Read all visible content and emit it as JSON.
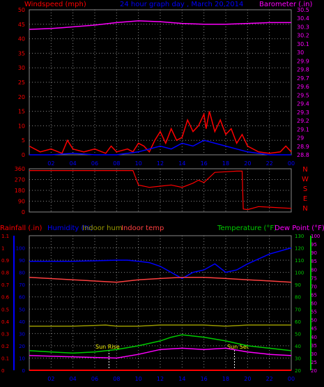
{
  "chart_data": [
    {
      "type": "line",
      "title": "24 hour graph day , March 20,2014",
      "left_axis_label": "Windspeed (mph)",
      "right_axis_label": "Barometer (.in)",
      "x_ticks": [
        "02",
        "04",
        "06",
        "08",
        "10",
        "12",
        "14",
        "16",
        "18",
        "20",
        "22",
        "00"
      ],
      "left_ticks": [
        "0",
        "5",
        "10",
        "15",
        "20",
        "25",
        "30",
        "35",
        "40",
        "45",
        "50"
      ],
      "right_ticks": [
        "28.8",
        "28.9",
        "29",
        "29.1",
        "29.2",
        "29.3",
        "29.4",
        "29.5",
        "29.6",
        "29.7",
        "29.8",
        "29.9",
        "30",
        "30.1",
        "30.2",
        "30.3",
        "30.4",
        "30.5"
      ],
      "ylim_left": [
        0,
        50
      ],
      "ylim_right": [
        28.8,
        30.5
      ],
      "grid": true,
      "series": [
        {
          "name": "Barometer",
          "axis": "right",
          "color": "#ff00ff",
          "x": [
            0,
            2,
            3,
            4,
            6,
            8,
            10,
            12,
            14,
            16,
            18,
            20,
            22,
            24
          ],
          "y": [
            30.27,
            30.28,
            30.29,
            30.3,
            30.32,
            30.35,
            30.37,
            30.36,
            30.34,
            30.33,
            30.33,
            30.34,
            30.35,
            30.35
          ]
        },
        {
          "name": "Wind gust",
          "axis": "left",
          "color": "#ff0000",
          "x": [
            0,
            1,
            2,
            3,
            3.5,
            4,
            5,
            6,
            7,
            7.5,
            8,
            9,
            9.5,
            10,
            10.5,
            11,
            11.5,
            12,
            12.5,
            13,
            13.5,
            14,
            14.5,
            15,
            15.5,
            16,
            16.2,
            16.5,
            17,
            17.5,
            18,
            18.5,
            19,
            19.5,
            20,
            21,
            22,
            23,
            23.5,
            24
          ],
          "y": [
            3,
            1,
            2,
            0.5,
            5,
            2,
            1,
            2,
            0.5,
            3,
            1,
            2,
            1,
            4,
            3,
            1,
            5,
            8,
            4,
            9,
            5,
            6,
            12,
            8,
            10,
            14,
            9,
            15,
            8,
            12,
            7,
            9,
            4,
            7,
            3,
            1,
            0.5,
            1,
            3,
            1
          ]
        },
        {
          "name": "Wind speed",
          "axis": "left",
          "color": "#0000ff",
          "x": [
            0,
            2,
            4,
            6,
            8,
            9,
            10,
            11,
            12,
            13,
            14,
            15,
            16,
            17,
            18,
            19,
            20,
            22,
            24
          ],
          "y": [
            0,
            0,
            0.5,
            0,
            0,
            0.5,
            1,
            2,
            3,
            2,
            4,
            3,
            5,
            4,
            3,
            2,
            1,
            0,
            0
          ]
        }
      ]
    },
    {
      "type": "line",
      "title": "",
      "right_labels": [
        "N",
        "W",
        "S",
        "E",
        "N"
      ],
      "left_ticks": [
        "0",
        "90",
        "180",
        "270",
        "360"
      ],
      "x_ticks": [
        "02",
        "04",
        "06",
        "08",
        "10",
        "12",
        "14",
        "16",
        "18",
        "20",
        "22",
        "00"
      ],
      "ylim": [
        0,
        360
      ],
      "grid": true,
      "series": [
        {
          "name": "Wind direction",
          "color": "#ff0000",
          "x": [
            0,
            4,
            8,
            9.5,
            10,
            11,
            12,
            13,
            14,
            15,
            15.5,
            16,
            17,
            18,
            19,
            19.5,
            19.6,
            20,
            21,
            22,
            23,
            24
          ],
          "y": [
            345,
            345,
            345,
            345,
            225,
            205,
            215,
            225,
            205,
            240,
            265,
            245,
            330,
            335,
            340,
            340,
            25,
            20,
            45,
            40,
            35,
            30
          ]
        }
      ]
    },
    {
      "type": "line",
      "title": "",
      "legend": [
        "Rainfall (.in)",
        "Humidity (%)",
        "Indoor hum",
        "Indoor temp",
        "Temperature (°F)",
        "Dew Point (°F)"
      ],
      "left_ticks_outer": [
        "0",
        "0.1",
        "0.2",
        "0.3",
        "0.4",
        "0.5",
        "0.6",
        "0.7",
        "0.8",
        "0.9",
        "1",
        "1.1"
      ],
      "left_ticks_inner": [
        "0",
        "10",
        "20",
        "30",
        "40",
        "50",
        "60",
        "70",
        "80",
        "90",
        "100"
      ],
      "right_ticks_inner": [
        "20",
        "30",
        "40",
        "50",
        "60",
        "70",
        "80",
        "90",
        "100",
        "110",
        "120",
        "130"
      ],
      "right_ticks_outer": [
        "20",
        "25",
        "30",
        "35",
        "40",
        "45",
        "50",
        "55",
        "60",
        "65",
        "70",
        "75",
        "80",
        "85",
        "90",
        "95",
        "100"
      ],
      "x_ticks": [
        "02",
        "04",
        "06",
        "08",
        "10",
        "12",
        "14",
        "16",
        "18",
        "20",
        "22",
        "00"
      ],
      "annotations": [
        "Sun Rise",
        "Sun Set"
      ],
      "grid": true,
      "series": [
        {
          "name": "Humidity",
          "color": "#0000ff",
          "x": [
            0,
            4,
            8,
            9,
            10,
            11,
            12,
            13,
            14,
            15,
            16,
            17,
            18,
            19,
            20,
            22,
            24
          ],
          "y": [
            89,
            89,
            90,
            90,
            89,
            88,
            85,
            80,
            75,
            80,
            82,
            87,
            80,
            82,
            87,
            95,
            100
          ]
        },
        {
          "name": "Indoor temp",
          "color": "#ff4040",
          "x": [
            0,
            4,
            8,
            10,
            12,
            14,
            16,
            18,
            20,
            22,
            24
          ],
          "y": [
            76,
            74,
            72,
            74,
            75,
            76,
            76,
            75,
            74,
            73,
            72
          ]
        },
        {
          "name": "Indoor hum",
          "color": "#999900",
          "x": [
            0,
            4,
            7,
            8,
            10,
            12,
            14,
            16,
            18,
            20,
            22,
            24
          ],
          "y": [
            36,
            36,
            37,
            36,
            36,
            37,
            37,
            37,
            36,
            37,
            37,
            37
          ]
        },
        {
          "name": "Temperature",
          "color": "#00cc00",
          "x": [
            0,
            2,
            4,
            6,
            8,
            10,
            12,
            13,
            14,
            15,
            16,
            18,
            20,
            22,
            24
          ],
          "y": [
            16,
            15,
            14,
            15,
            17,
            20,
            24,
            27,
            29,
            28,
            27,
            24,
            20,
            18,
            16
          ]
        },
        {
          "name": "Dew Point",
          "color": "#ff00ff",
          "x": [
            0,
            4,
            8,
            10,
            12,
            14,
            16,
            18,
            20,
            22,
            24
          ],
          "y": [
            12,
            11,
            10,
            13,
            17,
            18,
            17,
            18,
            15,
            13,
            12
          ]
        },
        {
          "name": "Rainfall",
          "color": "#ff0000",
          "x": [
            0,
            24
          ],
          "y": [
            0,
            0
          ]
        }
      ]
    }
  ]
}
